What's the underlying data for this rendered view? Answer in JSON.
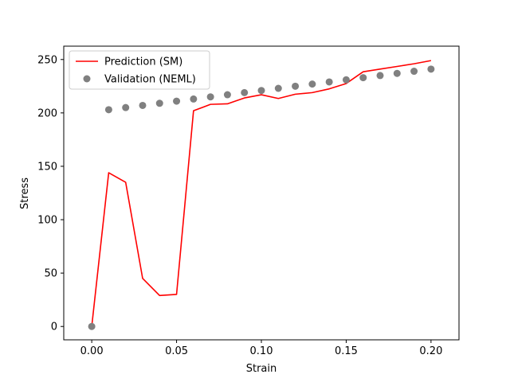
{
  "chart_data": {
    "type": "line",
    "title": "",
    "xlabel": "Strain",
    "ylabel": "Stress",
    "xlim": [
      -0.0165,
      0.2165
    ],
    "ylim": [
      -12.5,
      262.5
    ],
    "xticks": [
      0.0,
      0.05,
      0.1,
      0.15,
      0.2
    ],
    "xtick_labels": [
      "0.00",
      "0.05",
      "0.10",
      "0.15",
      "0.20"
    ],
    "yticks": [
      0,
      50,
      100,
      150,
      200,
      250
    ],
    "ytick_labels": [
      "0",
      "50",
      "100",
      "150",
      "200",
      "250"
    ],
    "grid": false,
    "legend_placement": "top-left",
    "series": [
      {
        "name": "Prediction (SM)",
        "kind": "line",
        "color": "#ff0000",
        "x": [
          0.0,
          0.01,
          0.02,
          0.03,
          0.04,
          0.05,
          0.06,
          0.07,
          0.08,
          0.09,
          0.1,
          0.11,
          0.12,
          0.13,
          0.14,
          0.15,
          0.16,
          0.17,
          0.18,
          0.19,
          0.2
        ],
        "values": [
          0,
          144,
          135,
          45,
          29,
          30,
          202,
          208,
          208.5,
          214,
          217,
          213.5,
          217.5,
          219,
          222.5,
          227.5,
          238.5,
          241,
          243.5,
          246,
          249
        ]
      },
      {
        "name": "Validation (NEML)",
        "kind": "scatter",
        "color": "#808080",
        "x": [
          0.0,
          0.01,
          0.02,
          0.03,
          0.04,
          0.05,
          0.06,
          0.07,
          0.08,
          0.09,
          0.1,
          0.11,
          0.12,
          0.13,
          0.14,
          0.15,
          0.16,
          0.17,
          0.18,
          0.19,
          0.2
        ],
        "values": [
          0,
          203,
          205,
          207,
          209,
          211,
          213,
          215,
          217,
          219,
          221,
          223,
          225,
          227,
          229,
          231,
          233,
          235,
          237,
          239,
          241
        ]
      }
    ]
  }
}
